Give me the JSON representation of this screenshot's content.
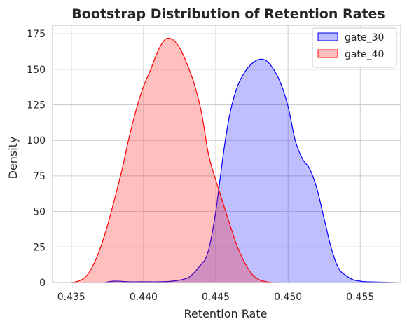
{
  "chart_data": {
    "type": "area",
    "title": "Bootstrap Distribution of Retention Rates",
    "xlabel": "Retention Rate",
    "ylabel": "Density",
    "xlim": [
      0.4337,
      0.4578
    ],
    "ylim": [
      0,
      181
    ],
    "xticks": [
      "0.435",
      "0.440",
      "0.445",
      "0.450",
      "0.455"
    ],
    "yticks": [
      "0",
      "25",
      "50",
      "75",
      "100",
      "125",
      "150",
      "175"
    ],
    "xtick_values": [
      0.435,
      0.44,
      0.445,
      0.45,
      0.455
    ],
    "ytick_values": [
      0,
      25,
      50,
      75,
      100,
      125,
      150,
      175
    ],
    "grid": true,
    "legend_position": "top-right",
    "series": [
      {
        "name": "gate_30",
        "color": "#0000ff",
        "fill": "#bcbcff",
        "points": [
          [
            0.4373,
            0
          ],
          [
            0.438,
            1
          ],
          [
            0.439,
            0.5
          ],
          [
            0.44,
            0.5
          ],
          [
            0.441,
            0.5
          ],
          [
            0.442,
            1
          ],
          [
            0.443,
            3
          ],
          [
            0.4435,
            7
          ],
          [
            0.444,
            13
          ],
          [
            0.4443,
            17
          ],
          [
            0.4446,
            27
          ],
          [
            0.445,
            50
          ],
          [
            0.4453,
            73
          ],
          [
            0.4456,
            96
          ],
          [
            0.446,
            120
          ],
          [
            0.4465,
            138
          ],
          [
            0.447,
            148
          ],
          [
            0.4475,
            154
          ],
          [
            0.448,
            157
          ],
          [
            0.4485,
            156
          ],
          [
            0.449,
            150
          ],
          [
            0.4495,
            140
          ],
          [
            0.45,
            124
          ],
          [
            0.4505,
            100
          ],
          [
            0.451,
            87
          ],
          [
            0.4515,
            80
          ],
          [
            0.452,
            66
          ],
          [
            0.4525,
            45
          ],
          [
            0.453,
            24
          ],
          [
            0.4535,
            10
          ],
          [
            0.454,
            5
          ],
          [
            0.4545,
            2
          ],
          [
            0.455,
            1
          ],
          [
            0.4555,
            0.5
          ],
          [
            0.4575,
            0
          ]
        ]
      },
      {
        "name": "gate_40",
        "color": "#ff0000",
        "fill": "#ffbcbc",
        "points": [
          [
            0.435,
            0
          ],
          [
            0.4355,
            1
          ],
          [
            0.436,
            4
          ],
          [
            0.4365,
            12
          ],
          [
            0.437,
            24
          ],
          [
            0.4375,
            40
          ],
          [
            0.438,
            59
          ],
          [
            0.4385,
            79
          ],
          [
            0.439,
            102
          ],
          [
            0.4395,
            122
          ],
          [
            0.44,
            138
          ],
          [
            0.4405,
            150
          ],
          [
            0.441,
            163
          ],
          [
            0.4415,
            171
          ],
          [
            0.442,
            171
          ],
          [
            0.4425,
            165
          ],
          [
            0.443,
            154
          ],
          [
            0.4435,
            140
          ],
          [
            0.444,
            120
          ],
          [
            0.4445,
            90
          ],
          [
            0.445,
            72
          ],
          [
            0.4455,
            56
          ],
          [
            0.446,
            40
          ],
          [
            0.4465,
            25
          ],
          [
            0.447,
            14
          ],
          [
            0.4475,
            6
          ],
          [
            0.448,
            2
          ],
          [
            0.4485,
            0.5
          ],
          [
            0.449,
            0
          ]
        ]
      }
    ]
  }
}
